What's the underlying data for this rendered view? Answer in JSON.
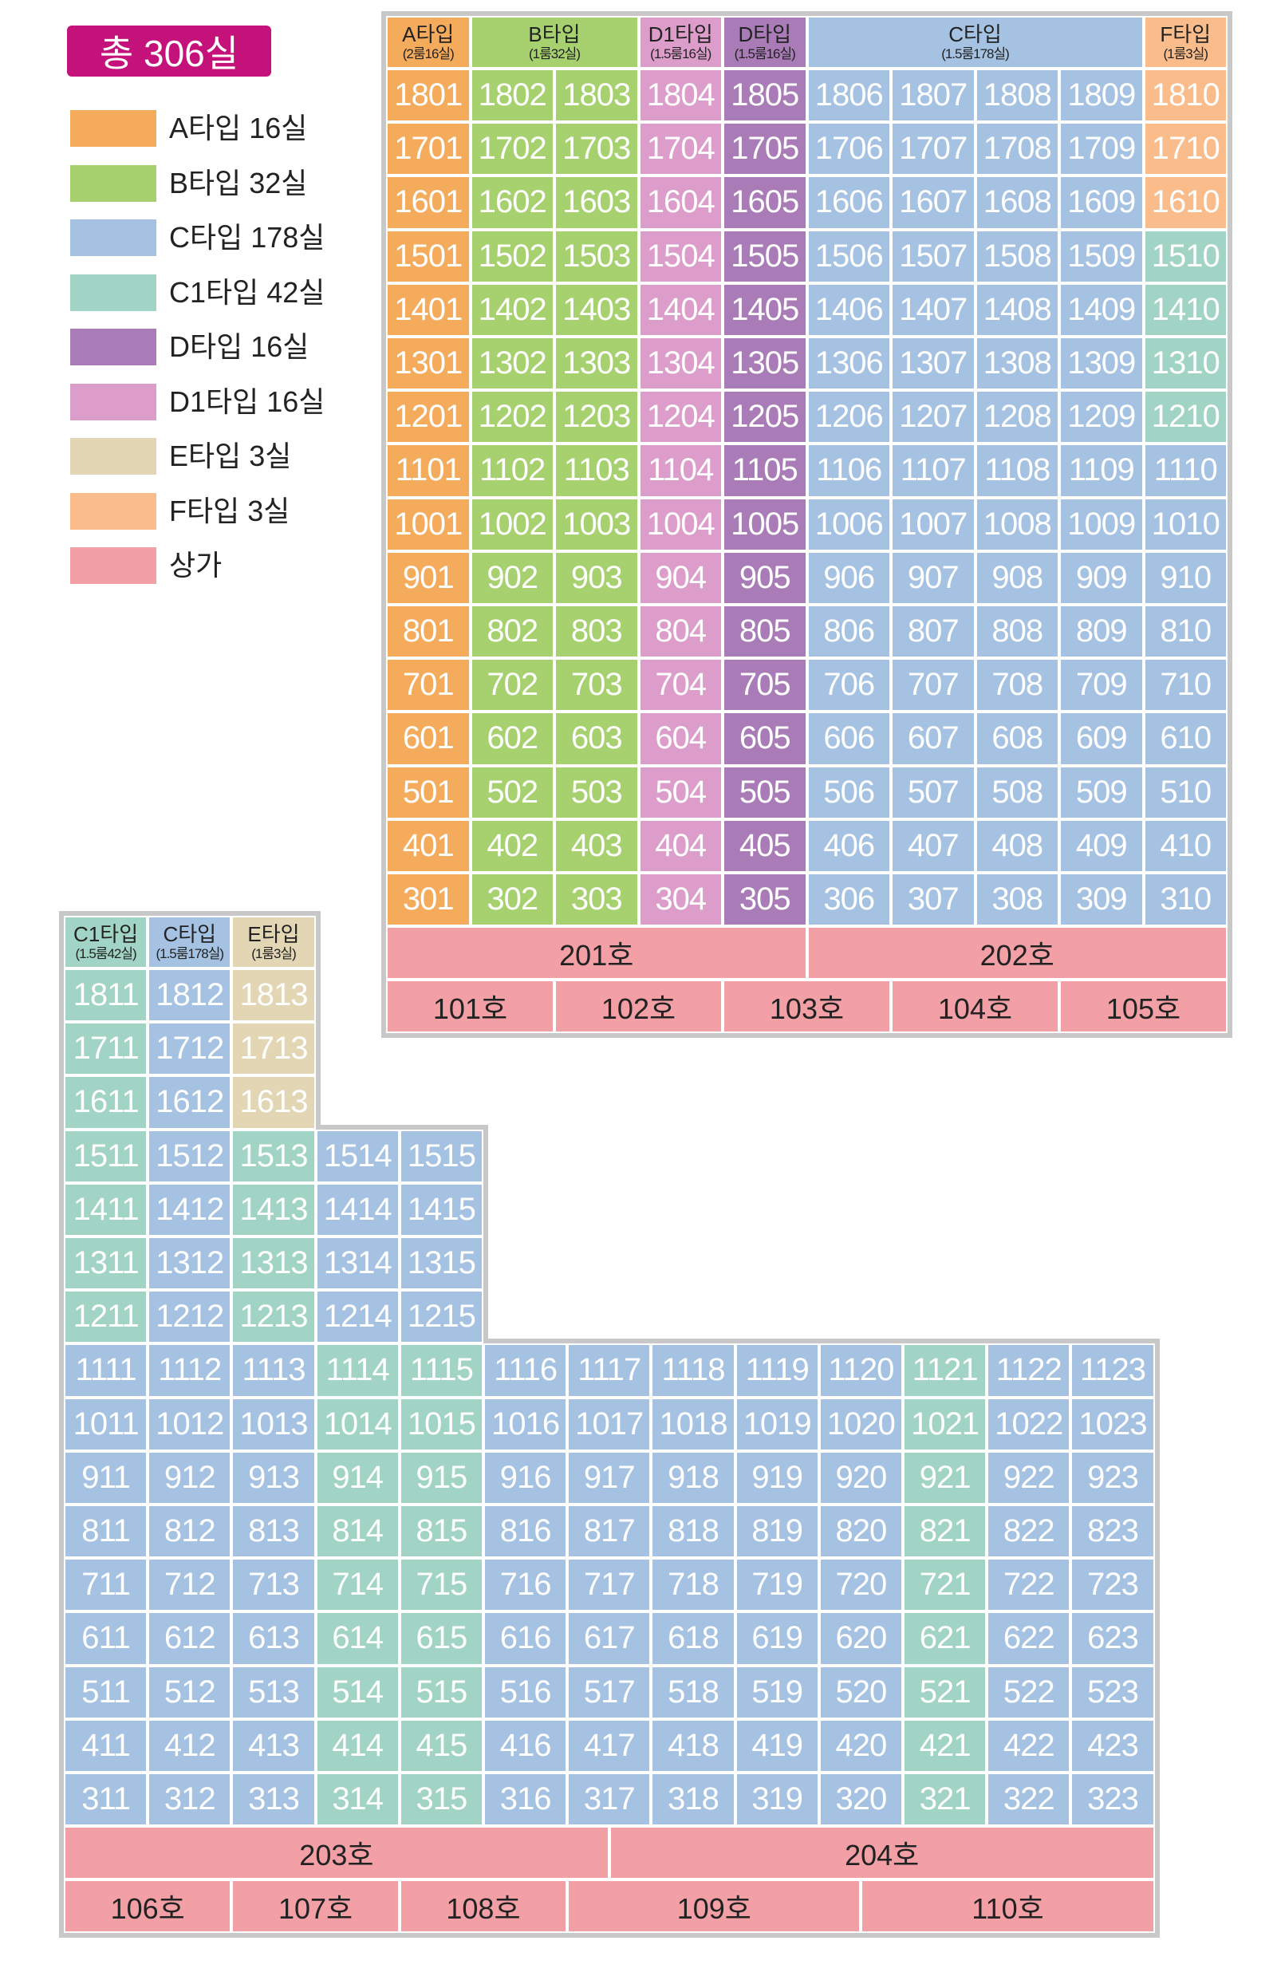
{
  "total_label": "총 306실",
  "legend": [
    {
      "label": "A타입 16실",
      "color": "#f5ab5c"
    },
    {
      "label": "B타입 32실",
      "color": "#a6d16e"
    },
    {
      "label": "C타입 178실",
      "color": "#a5c2e2"
    },
    {
      "label": "C1타입 42실",
      "color": "#a1d4c4"
    },
    {
      "label": "D타입 16실",
      "color": "#a97cb8"
    },
    {
      "label": "D1타입 16실",
      "color": "#dc9dcb"
    },
    {
      "label": "E타입 3실",
      "color": "#e2d6b5"
    },
    {
      "label": "F타입 3실",
      "color": "#f9bc8a"
    },
    {
      "label": "상가",
      "color": "#f2a0a6"
    }
  ],
  "colors": {
    "A": "#f5ab5c",
    "B": "#a6d16e",
    "C": "#a5c2e2",
    "C1": "#a1d4c4",
    "D": "#a97cb8",
    "D1": "#dc9dcb",
    "E": "#e2d6b5",
    "F": "#f9bc8a",
    "shop": "#f2a0a6",
    "frame": "#c8c8c8"
  },
  "building1": {
    "headers": [
      {
        "type": "A",
        "title": "A타입",
        "sub": "(2룸16실)",
        "span": 1
      },
      {
        "type": "B",
        "title": "B타입",
        "sub": "(1룸32실)",
        "span": 2
      },
      {
        "type": "D1",
        "title": "D1타입",
        "sub": "(1.5룸16실)",
        "span": 1
      },
      {
        "type": "D",
        "title": "D타입",
        "sub": "(1.5룸16실)",
        "span": 1
      },
      {
        "type": "C",
        "title": "C타입",
        "sub": "(1.5룸178실)",
        "span": 4
      },
      {
        "type": "F",
        "title": "F타입",
        "sub": "(1룸3실)",
        "span": 1
      }
    ],
    "rows": [
      {
        "units": [
          "1801",
          "1802",
          "1803",
          "1804",
          "1805",
          "1806",
          "1807",
          "1808",
          "1809",
          "1810"
        ],
        "types": [
          "A",
          "B",
          "B",
          "D1",
          "D",
          "C",
          "C",
          "C",
          "C",
          "F"
        ]
      },
      {
        "units": [
          "1701",
          "1702",
          "1703",
          "1704",
          "1705",
          "1706",
          "1707",
          "1708",
          "1709",
          "1710"
        ],
        "types": [
          "A",
          "B",
          "B",
          "D1",
          "D",
          "C",
          "C",
          "C",
          "C",
          "F"
        ]
      },
      {
        "units": [
          "1601",
          "1602",
          "1603",
          "1604",
          "1605",
          "1606",
          "1607",
          "1608",
          "1609",
          "1610"
        ],
        "types": [
          "A",
          "B",
          "B",
          "D1",
          "D",
          "C",
          "C",
          "C",
          "C",
          "F"
        ]
      },
      {
        "units": [
          "1501",
          "1502",
          "1503",
          "1504",
          "1505",
          "1506",
          "1507",
          "1508",
          "1509",
          "1510"
        ],
        "types": [
          "A",
          "B",
          "B",
          "D1",
          "D",
          "C",
          "C",
          "C",
          "C",
          "C1"
        ]
      },
      {
        "units": [
          "1401",
          "1402",
          "1403",
          "1404",
          "1405",
          "1406",
          "1407",
          "1408",
          "1409",
          "1410"
        ],
        "types": [
          "A",
          "B",
          "B",
          "D1",
          "D",
          "C",
          "C",
          "C",
          "C",
          "C1"
        ]
      },
      {
        "units": [
          "1301",
          "1302",
          "1303",
          "1304",
          "1305",
          "1306",
          "1307",
          "1308",
          "1309",
          "1310"
        ],
        "types": [
          "A",
          "B",
          "B",
          "D1",
          "D",
          "C",
          "C",
          "C",
          "C",
          "C1"
        ]
      },
      {
        "units": [
          "1201",
          "1202",
          "1203",
          "1204",
          "1205",
          "1206",
          "1207",
          "1208",
          "1209",
          "1210"
        ],
        "types": [
          "A",
          "B",
          "B",
          "D1",
          "D",
          "C",
          "C",
          "C",
          "C",
          "C1"
        ]
      },
      {
        "units": [
          "1101",
          "1102",
          "1103",
          "1104",
          "1105",
          "1106",
          "1107",
          "1108",
          "1109",
          "1110"
        ],
        "types": [
          "A",
          "B",
          "B",
          "D1",
          "D",
          "C",
          "C",
          "C",
          "C",
          "C"
        ]
      },
      {
        "units": [
          "1001",
          "1002",
          "1003",
          "1004",
          "1005",
          "1006",
          "1007",
          "1008",
          "1009",
          "1010"
        ],
        "types": [
          "A",
          "B",
          "B",
          "D1",
          "D",
          "C",
          "C",
          "C",
          "C",
          "C"
        ]
      },
      {
        "units": [
          "901",
          "902",
          "903",
          "904",
          "905",
          "906",
          "907",
          "908",
          "909",
          "910"
        ],
        "types": [
          "A",
          "B",
          "B",
          "D1",
          "D",
          "C",
          "C",
          "C",
          "C",
          "C"
        ]
      },
      {
        "units": [
          "801",
          "802",
          "803",
          "804",
          "805",
          "806",
          "807",
          "808",
          "809",
          "810"
        ],
        "types": [
          "A",
          "B",
          "B",
          "D1",
          "D",
          "C",
          "C",
          "C",
          "C",
          "C"
        ]
      },
      {
        "units": [
          "701",
          "702",
          "703",
          "704",
          "705",
          "706",
          "707",
          "708",
          "709",
          "710"
        ],
        "types": [
          "A",
          "B",
          "B",
          "D1",
          "D",
          "C",
          "C",
          "C",
          "C",
          "C"
        ]
      },
      {
        "units": [
          "601",
          "602",
          "603",
          "604",
          "605",
          "606",
          "607",
          "608",
          "609",
          "610"
        ],
        "types": [
          "A",
          "B",
          "B",
          "D1",
          "D",
          "C",
          "C",
          "C",
          "C",
          "C"
        ]
      },
      {
        "units": [
          "501",
          "502",
          "503",
          "504",
          "505",
          "506",
          "507",
          "508",
          "509",
          "510"
        ],
        "types": [
          "A",
          "B",
          "B",
          "D1",
          "D",
          "C",
          "C",
          "C",
          "C",
          "C"
        ]
      },
      {
        "units": [
          "401",
          "402",
          "403",
          "404",
          "405",
          "406",
          "407",
          "408",
          "409",
          "410"
        ],
        "types": [
          "A",
          "B",
          "B",
          "D1",
          "D",
          "C",
          "C",
          "C",
          "C",
          "C"
        ]
      },
      {
        "units": [
          "301",
          "302",
          "303",
          "304",
          "305",
          "306",
          "307",
          "308",
          "309",
          "310"
        ],
        "types": [
          "A",
          "B",
          "B",
          "D1",
          "D",
          "C",
          "C",
          "C",
          "C",
          "C"
        ]
      }
    ],
    "shops_upper": [
      {
        "label": "201호",
        "span": 5
      },
      {
        "label": "202호",
        "span": 5
      }
    ],
    "shops_lower": [
      {
        "label": "101호",
        "span": 2
      },
      {
        "label": "102호",
        "span": 2
      },
      {
        "label": "103호",
        "span": 2
      },
      {
        "label": "104호",
        "span": 2
      },
      {
        "label": "105호",
        "span": 2
      }
    ]
  },
  "building2": {
    "headers": [
      {
        "type": "C1",
        "title": "C1타입",
        "sub": "(1.5룸42실)",
        "span": 1
      },
      {
        "type": "C",
        "title": "C타입",
        "sub": "(1.5룸178실)",
        "span": 1
      },
      {
        "type": "E",
        "title": "E타입",
        "sub": "(1룸3실)",
        "span": 1
      }
    ],
    "rows": [
      {
        "units": [
          "1811",
          "1812",
          "1813"
        ],
        "types": [
          "C1",
          "C",
          "E"
        ]
      },
      {
        "units": [
          "1711",
          "1712",
          "1713"
        ],
        "types": [
          "C1",
          "C",
          "E"
        ]
      },
      {
        "units": [
          "1611",
          "1612",
          "1613"
        ],
        "types": [
          "C1",
          "C",
          "E"
        ]
      },
      {
        "units": [
          "1511",
          "1512",
          "1513",
          "1514",
          "1515"
        ],
        "types": [
          "C1",
          "C",
          "C1",
          "C",
          "C"
        ]
      },
      {
        "units": [
          "1411",
          "1412",
          "1413",
          "1414",
          "1415"
        ],
        "types": [
          "C1",
          "C",
          "C1",
          "C",
          "C"
        ]
      },
      {
        "units": [
          "1311",
          "1312",
          "1313",
          "1314",
          "1315"
        ],
        "types": [
          "C1",
          "C",
          "C1",
          "C",
          "C"
        ]
      },
      {
        "units": [
          "1211",
          "1212",
          "1213",
          "1214",
          "1215"
        ],
        "types": [
          "C1",
          "C",
          "C1",
          "C",
          "C"
        ]
      },
      {
        "units": [
          "1111",
          "1112",
          "1113",
          "1114",
          "1115",
          "1116",
          "1117",
          "1118",
          "1119",
          "1120",
          "1121",
          "1122",
          "1123"
        ],
        "types": [
          "C",
          "C",
          "C",
          "C1",
          "C1",
          "C",
          "C",
          "C",
          "C",
          "C",
          "C1",
          "C",
          "C"
        ]
      },
      {
        "units": [
          "1011",
          "1012",
          "1013",
          "1014",
          "1015",
          "1016",
          "1017",
          "1018",
          "1019",
          "1020",
          "1021",
          "1022",
          "1023"
        ],
        "types": [
          "C",
          "C",
          "C",
          "C1",
          "C1",
          "C",
          "C",
          "C",
          "C",
          "C",
          "C1",
          "C",
          "C"
        ]
      },
      {
        "units": [
          "911",
          "912",
          "913",
          "914",
          "915",
          "916",
          "917",
          "918",
          "919",
          "920",
          "921",
          "922",
          "923"
        ],
        "types": [
          "C",
          "C",
          "C",
          "C1",
          "C1",
          "C",
          "C",
          "C",
          "C",
          "C",
          "C1",
          "C",
          "C"
        ]
      },
      {
        "units": [
          "811",
          "812",
          "813",
          "814",
          "815",
          "816",
          "817",
          "818",
          "819",
          "820",
          "821",
          "822",
          "823"
        ],
        "types": [
          "C",
          "C",
          "C",
          "C1",
          "C1",
          "C",
          "C",
          "C",
          "C",
          "C",
          "C1",
          "C",
          "C"
        ]
      },
      {
        "units": [
          "711",
          "712",
          "713",
          "714",
          "715",
          "716",
          "717",
          "718",
          "719",
          "720",
          "721",
          "722",
          "723"
        ],
        "types": [
          "C",
          "C",
          "C",
          "C1",
          "C1",
          "C",
          "C",
          "C",
          "C",
          "C",
          "C1",
          "C",
          "C"
        ]
      },
      {
        "units": [
          "611",
          "612",
          "613",
          "614",
          "615",
          "616",
          "617",
          "618",
          "619",
          "620",
          "621",
          "622",
          "623"
        ],
        "types": [
          "C",
          "C",
          "C",
          "C1",
          "C1",
          "C",
          "C",
          "C",
          "C",
          "C",
          "C1",
          "C",
          "C"
        ]
      },
      {
        "units": [
          "511",
          "512",
          "513",
          "514",
          "515",
          "516",
          "517",
          "518",
          "519",
          "520",
          "521",
          "522",
          "523"
        ],
        "types": [
          "C",
          "C",
          "C",
          "C1",
          "C1",
          "C",
          "C",
          "C",
          "C",
          "C",
          "C1",
          "C",
          "C"
        ]
      },
      {
        "units": [
          "411",
          "412",
          "413",
          "414",
          "415",
          "416",
          "417",
          "418",
          "419",
          "420",
          "421",
          "422",
          "423"
        ],
        "types": [
          "C",
          "C",
          "C",
          "C1",
          "C1",
          "C",
          "C",
          "C",
          "C",
          "C",
          "C1",
          "C",
          "C"
        ]
      },
      {
        "units": [
          "311",
          "312",
          "313",
          "314",
          "315",
          "316",
          "317",
          "318",
          "319",
          "320",
          "321",
          "322",
          "323"
        ],
        "types": [
          "C",
          "C",
          "C",
          "C1",
          "C1",
          "C",
          "C",
          "C",
          "C",
          "C",
          "C1",
          "C",
          "C"
        ]
      }
    ],
    "shops_upper": [
      {
        "label": "203호",
        "span": 6.5
      },
      {
        "label": "204호",
        "span": 6.5
      }
    ],
    "shops_lower": [
      {
        "label": "106호",
        "span": 2
      },
      {
        "label": "107호",
        "span": 2
      },
      {
        "label": "108호",
        "span": 2
      },
      {
        "label": "109호",
        "span": 3.5
      },
      {
        "label": "110호",
        "span": 3.5
      }
    ]
  }
}
